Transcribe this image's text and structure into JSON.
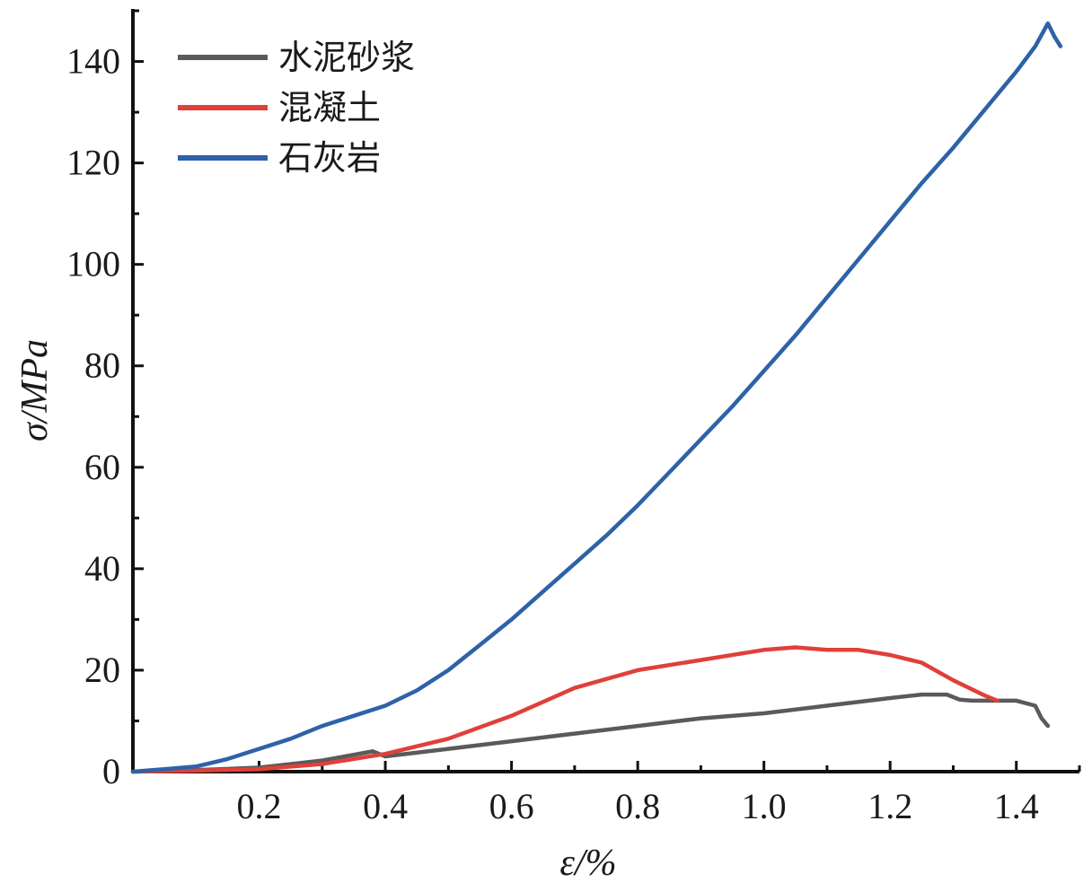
{
  "chart_data": {
    "type": "line",
    "xlabel": "ε/%",
    "ylabel": "σ/MPa",
    "xlim": [
      0.0,
      1.5
    ],
    "ylim": [
      0,
      150
    ],
    "xticks": [
      0.2,
      0.4,
      0.6,
      0.8,
      1.0,
      1.2,
      1.4
    ],
    "xtick_labels": [
      "0.2",
      "0.4",
      "0.6",
      "0.8",
      "1.0",
      "1.2",
      "1.4"
    ],
    "yticks": [
      0,
      20,
      40,
      60,
      80,
      100,
      120,
      140
    ],
    "ytick_labels": [
      "0",
      "20",
      "40",
      "60",
      "80",
      "100",
      "120",
      "140"
    ],
    "grid": false,
    "legend_position": "top-left",
    "series": [
      {
        "name": "水泥砂浆",
        "color": "#5a5a5a",
        "x": [
          0.0,
          0.1,
          0.2,
          0.3,
          0.38,
          0.4,
          0.5,
          0.6,
          0.7,
          0.8,
          0.9,
          1.0,
          1.1,
          1.2,
          1.25,
          1.29,
          1.31,
          1.33,
          1.4,
          1.43,
          1.44,
          1.45
        ],
        "y": [
          0.0,
          0.3,
          0.8,
          2.2,
          4.0,
          3.0,
          4.5,
          6.0,
          7.5,
          9.0,
          10.5,
          11.5,
          13.0,
          14.5,
          15.2,
          15.2,
          14.2,
          14.0,
          14.0,
          13.0,
          10.5,
          9.0
        ]
      },
      {
        "name": "混凝土",
        "color": "#e0403a",
        "x": [
          0.0,
          0.1,
          0.2,
          0.3,
          0.4,
          0.5,
          0.6,
          0.7,
          0.8,
          0.9,
          1.0,
          1.05,
          1.1,
          1.15,
          1.2,
          1.25,
          1.3,
          1.35,
          1.37
        ],
        "y": [
          0.0,
          0.2,
          0.5,
          1.5,
          3.5,
          6.5,
          11.0,
          16.5,
          20.0,
          22.0,
          24.0,
          24.5,
          24.0,
          24.0,
          23.0,
          21.5,
          18.0,
          15.0,
          14.0
        ]
      },
      {
        "name": "石灰岩",
        "color": "#2e62a8",
        "x": [
          0.0,
          0.05,
          0.1,
          0.15,
          0.2,
          0.25,
          0.3,
          0.35,
          0.4,
          0.45,
          0.5,
          0.55,
          0.6,
          0.65,
          0.7,
          0.75,
          0.8,
          0.85,
          0.9,
          0.95,
          1.0,
          1.05,
          1.1,
          1.15,
          1.2,
          1.25,
          1.3,
          1.35,
          1.4,
          1.43,
          1.45,
          1.46,
          1.47
        ],
        "y": [
          0.0,
          0.5,
          1.0,
          2.5,
          4.5,
          6.5,
          9.0,
          11.0,
          13.0,
          16.0,
          20.0,
          25.0,
          30.0,
          35.5,
          41.0,
          46.5,
          52.5,
          59.0,
          65.5,
          72.0,
          79.0,
          86.0,
          93.5,
          101.0,
          108.5,
          116.0,
          123.0,
          130.5,
          138.0,
          143.0,
          147.5,
          145.0,
          143.0
        ]
      }
    ]
  }
}
